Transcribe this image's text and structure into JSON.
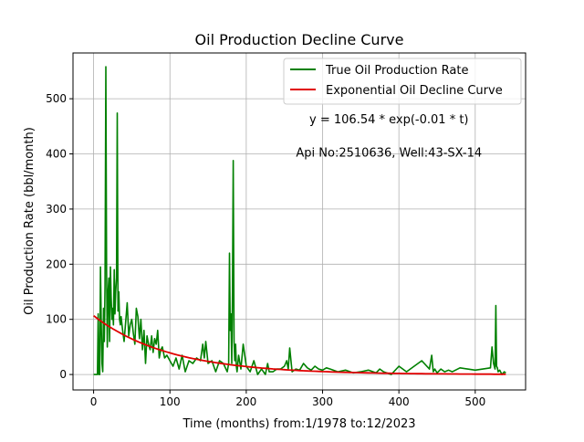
{
  "chart_data": {
    "type": "line",
    "title": "Oil Production Decline Curve",
    "xlabel": "Time (months) from:1/1978 to:12/2023",
    "ylabel": "Oil Production Rate (bbl/month)",
    "xlim": [
      -27,
      566
    ],
    "ylim": [
      -28,
      583
    ],
    "xticks": [
      0,
      100,
      200,
      300,
      400,
      500
    ],
    "yticks": [
      0,
      100,
      200,
      300,
      400,
      500
    ],
    "grid": true,
    "legend_position": "top-right",
    "annotations": [
      {
        "text": "y = 106.54 * exp(-0.01 * t)",
        "x": 387,
        "y": 462
      },
      {
        "text": "Api No:2510636, Well:43-SX-14",
        "x": 387,
        "y": 402
      }
    ],
    "fit": {
      "a": 106.54,
      "b": 0.01,
      "t_range": [
        0,
        540
      ]
    },
    "series": [
      {
        "name": "True Oil Production Rate",
        "color": "#008000",
        "x": [
          0,
          5,
          6,
          7,
          8,
          9,
          10,
          11,
          12,
          13,
          14,
          15,
          16,
          17,
          18,
          19,
          20,
          21,
          22,
          23,
          24,
          25,
          26,
          27,
          28,
          29,
          30,
          31,
          32,
          33,
          34,
          35,
          36,
          38,
          40,
          42,
          44,
          46,
          48,
          50,
          52,
          54,
          56,
          58,
          60,
          62,
          64,
          66,
          68,
          70,
          72,
          74,
          76,
          78,
          80,
          82,
          84,
          86,
          88,
          90,
          93,
          96,
          100,
          104,
          108,
          112,
          116,
          120,
          125,
          130,
          135,
          140,
          143,
          145,
          147,
          150,
          155,
          160,
          165,
          170,
          175,
          177,
          178,
          179,
          180,
          181,
          182,
          183,
          184,
          185,
          186,
          187,
          188,
          190,
          193,
          196,
          200,
          205,
          210,
          215,
          220,
          225,
          228,
          230,
          235,
          240,
          245,
          250,
          253,
          255,
          257,
          260,
          265,
          270,
          275,
          280,
          285,
          290,
          295,
          300,
          305,
          310,
          320,
          330,
          340,
          350,
          360,
          370,
          375,
          380,
          390,
          400,
          410,
          420,
          430,
          440,
          443,
          445,
          447,
          450,
          455,
          460,
          465,
          470,
          480,
          490,
          500,
          510,
          520,
          522,
          524,
          526,
          527,
          528,
          529,
          530,
          532,
          535,
          538,
          540
        ],
        "y": [
          0,
          0,
          110,
          0,
          0,
          195,
          100,
          20,
          5,
          120,
          60,
          160,
          558,
          190,
          50,
          150,
          175,
          60,
          195,
          140,
          100,
          120,
          90,
          190,
          110,
          150,
          175,
          474,
          115,
          150,
          100,
          90,
          105,
          80,
          60,
          95,
          130,
          70,
          90,
          100,
          75,
          55,
          120,
          105,
          65,
          100,
          45,
          80,
          20,
          70,
          55,
          45,
          70,
          40,
          65,
          55,
          80,
          30,
          45,
          50,
          30,
          35,
          25,
          15,
          30,
          10,
          35,
          5,
          25,
          20,
          30,
          25,
          55,
          30,
          60,
          20,
          25,
          5,
          25,
          20,
          5,
          20,
          220,
          80,
          110,
          20,
          150,
          388,
          60,
          25,
          55,
          15,
          5,
          35,
          10,
          55,
          15,
          5,
          25,
          0,
          10,
          0,
          20,
          5,
          5,
          10,
          10,
          15,
          25,
          10,
          48,
          5,
          10,
          8,
          20,
          12,
          8,
          15,
          10,
          8,
          12,
          10,
          5,
          8,
          3,
          5,
          8,
          3,
          10,
          5,
          0,
          15,
          5,
          15,
          25,
          10,
          35,
          5,
          10,
          3,
          10,
          5,
          8,
          5,
          12,
          10,
          8,
          10,
          12,
          50,
          20,
          10,
          125,
          15,
          12,
          5,
          8,
          0,
          5,
          3
        ]
      },
      {
        "name": "Exponential Oil Decline Curve",
        "color": "#e00000"
      }
    ]
  }
}
